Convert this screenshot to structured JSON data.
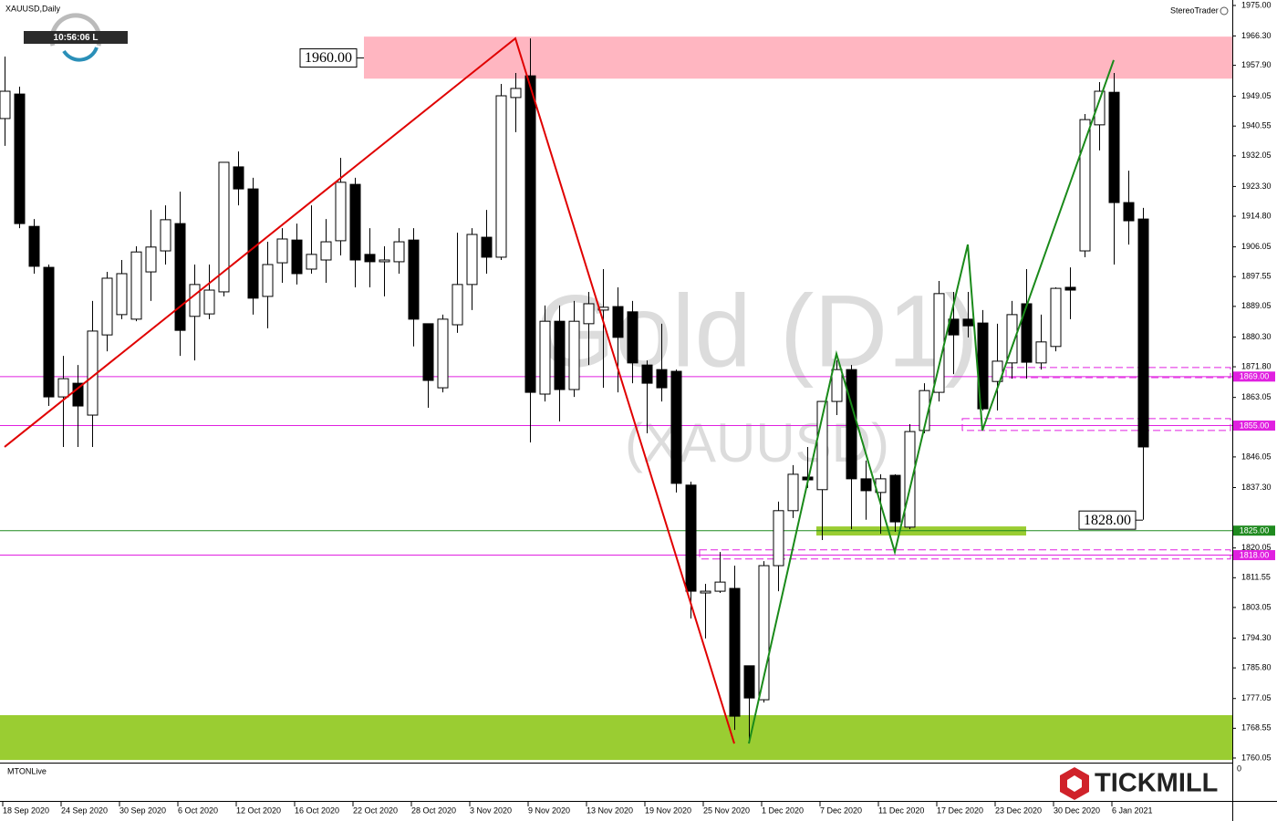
{
  "header": {
    "symbol": "XAUUSD,Daily",
    "clock": "10:56:06 L",
    "platform": "StereoTrader",
    "indicator": "MTONLive",
    "indicator_zero": 0,
    "logo": "TICKMILL"
  },
  "chart_data": {
    "type": "candlestick",
    "watermark": [
      "Gold (D1)",
      "(XAUUSD)"
    ],
    "categories": [
      "18 Sep 2020",
      null,
      null,
      null,
      "24 Sep 2020",
      null,
      null,
      null,
      "30 Sep 2020",
      null,
      null,
      null,
      "6 Oct 2020",
      null,
      null,
      null,
      "12 Oct 2020",
      null,
      null,
      null,
      "16 Oct 2020",
      null,
      null,
      null,
      "22 Oct 2020",
      null,
      null,
      null,
      "28 Oct 2020",
      null,
      null,
      null,
      "3 Nov 2020",
      null,
      null,
      null,
      "9 Nov 2020",
      null,
      null,
      null,
      "13 Nov 2020",
      null,
      null,
      null,
      "19 Nov 2020",
      null,
      null,
      null,
      "25 Nov 2020",
      null,
      null,
      null,
      "1 Dec 2020",
      null,
      null,
      null,
      "7 Dec 2020",
      null,
      null,
      null,
      "11 Dec 2020",
      null,
      null,
      null,
      "17 Dec 2020",
      null,
      null,
      null,
      "23 Dec 2020",
      null,
      null,
      null,
      "30 Dec 2020",
      null,
      null,
      null,
      "6 Jan 2021",
      null,
      null
    ],
    "open": [
      1942.7,
      1949.7,
      1911.9,
      1900.2,
      1863.2,
      1867.1,
      1858.0,
      1880.9,
      1886.7,
      1885.4,
      1898.9,
      1904.9,
      1912.7,
      1886.2,
      1886.9,
      1893.2,
      1928.9,
      1922.6,
      1891.9,
      1901.5,
      1908.0,
      1899.7,
      1902.3,
      1907.8,
      1923.9,
      1903.9,
      1901.8,
      1901.8,
      1908.0,
      1884.1,
      1865.8,
      1883.8,
      1895.3,
      1908.8,
      1903.1,
      1948.7,
      1954.9,
      1864.0,
      1884.8,
      1865.3,
      1884.1,
      1888.0,
      1889.0,
      1887.5,
      1872.3,
      1871.0,
      1870.5,
      1838.0,
      1807.2,
      1807.7,
      1808.5,
      1786.4,
      1776.7,
      1815.0,
      1830.7,
      1840.3,
      1836.7,
      1861.9,
      1871.0,
      1839.8,
      1835.9,
      1840.8,
      1826.0,
      1853.6,
      1864.5,
      1885.4,
      1885.4,
      1884.3,
      1867.6,
      1872.9,
      1889.8,
      1872.9,
      1877.6,
      1894.5,
      1904.9,
      1940.9,
      1950.2,
      1918.7,
      1914.0
    ],
    "high": [
      1960.4,
      1951.8,
      1914.0,
      1901.0,
      1874.9,
      1872.3,
      1890.6,
      1898.9,
      1902.3,
      1906.2,
      1916.6,
      1917.9,
      1921.8,
      1901.0,
      1901.0,
      1930.2,
      1933.3,
      1925.8,
      1907.5,
      1911.4,
      1912.7,
      1917.9,
      1914.0,
      1931.5,
      1925.8,
      1911.4,
      1906.2,
      1911.4,
      1911.4,
      1884.1,
      1886.7,
      1910.1,
      1911.4,
      1916.6,
      1952.6,
      1955.7,
      1965.6,
      1889.3,
      1889.3,
      1890.6,
      1893.2,
      1899.7,
      1894.5,
      1890.6,
      1873.6,
      1884.1,
      1871.0,
      1839.0,
      1809.8,
      1818.9,
      1815.0,
      1786.4,
      1816.3,
      1833.3,
      1843.7,
      1848.9,
      1861.9,
      1873.6,
      1872.3,
      1845.0,
      1841.1,
      1841.1,
      1855.4,
      1867.1,
      1896.3,
      1893.2,
      1893.2,
      1888.0,
      1884.1,
      1890.6,
      1899.7,
      1886.7,
      1894.5,
      1900.2,
      1944.0,
      1953.1,
      1955.7,
      1927.8,
      1917.2
    ],
    "low": [
      1934.9,
      1911.4,
      1898.4,
      1860.6,
      1848.9,
      1848.9,
      1848.9,
      1876.2,
      1885.4,
      1884.8,
      1890.6,
      1901.0,
      1874.9,
      1873.6,
      1885.4,
      1891.9,
      1917.9,
      1886.7,
      1882.8,
      1895.8,
      1895.3,
      1898.4,
      1895.8,
      1903.6,
      1894.5,
      1894.5,
      1891.9,
      1898.4,
      1877.6,
      1860.1,
      1864.5,
      1881.5,
      1888.0,
      1898.4,
      1902.3,
      1938.8,
      1850.2,
      1861.9,
      1856.2,
      1863.2,
      1872.3,
      1865.8,
      1864.5,
      1867.1,
      1852.8,
      1861.9,
      1835.9,
      1799.9,
      1794.2,
      1807.2,
      1768.1,
      1765.0,
      1775.9,
      1807.7,
      1828.6,
      1837.2,
      1822.3,
      1858.0,
      1825.4,
      1828.1,
      1824.1,
      1824.7,
      1825.4,
      1852.8,
      1861.9,
      1869.7,
      1880.2,
      1859.3,
      1859.3,
      1868.4,
      1868.4,
      1871.0,
      1876.2,
      1885.4,
      1903.1,
      1933.6,
      1901.0,
      1906.7,
      1828.1
    ],
    "close": [
      1950.5,
      1912.7,
      1900.5,
      1863.2,
      1868.4,
      1860.6,
      1882.0,
      1897.1,
      1898.4,
      1904.6,
      1906.0,
      1913.8,
      1882.2,
      1895.3,
      1893.7,
      1930.2,
      1922.6,
      1891.4,
      1901.0,
      1908.3,
      1898.4,
      1903.9,
      1907.5,
      1924.5,
      1902.3,
      1901.8,
      1902.3,
      1907.5,
      1885.4,
      1867.9,
      1885.4,
      1895.3,
      1909.6,
      1903.1,
      1949.2,
      1951.3,
      1864.5,
      1884.8,
      1865.3,
      1884.8,
      1889.8,
      1888.8,
      1880.2,
      1872.9,
      1867.1,
      1865.8,
      1838.5,
      1807.7,
      1807.7,
      1810.3,
      1772.0,
      1777.2,
      1815.0,
      1830.7,
      1841.1,
      1839.5,
      1861.9,
      1871.0,
      1839.8,
      1836.4,
      1839.8,
      1827.5,
      1853.3,
      1865.0,
      1892.7,
      1880.9,
      1883.5,
      1859.8,
      1873.4,
      1886.7,
      1873.1,
      1878.9,
      1894.2,
      1893.7,
      1942.4,
      1950.5,
      1918.7,
      1913.5,
      1848.9
    ],
    "up_color": "#ffffff",
    "down_color": "#000000",
    "ylim": [
      1759.0,
      1976.56
    ],
    "yticks": [
      {
        "value": 1975.0,
        "label": "1975.00"
      },
      {
        "value": 1966.3,
        "label": "1966.30"
      },
      {
        "value": 1957.9,
        "label": "1957.90"
      },
      {
        "value": 1949.05,
        "label": "1949.05"
      },
      {
        "value": 1940.55,
        "label": "1940.55"
      },
      {
        "value": 1932.05,
        "label": "1932.05"
      },
      {
        "value": 1923.3,
        "label": "1923.30"
      },
      {
        "value": 1914.8,
        "label": "1914.80"
      },
      {
        "value": 1906.05,
        "label": "1906.05"
      },
      {
        "value": 1897.55,
        "label": "1897.55"
      },
      {
        "value": 1889.05,
        "label": "1889.05"
      },
      {
        "value": 1880.3,
        "label": "1880.30"
      },
      {
        "value": 1871.8,
        "label": "1871.80"
      },
      {
        "value": 1863.05,
        "label": "1863.05"
      },
      {
        "value": 1846.05,
        "label": "1846.05"
      },
      {
        "value": 1837.3,
        "label": "1837.30"
      },
      {
        "value": 1820.05,
        "label": "1820.05"
      },
      {
        "value": 1811.55,
        "label": "1811.55"
      },
      {
        "value": 1803.05,
        "label": "1803.05"
      },
      {
        "value": 1794.3,
        "label": "1794.30"
      },
      {
        "value": 1785.8,
        "label": "1785.80"
      },
      {
        "value": 1777.05,
        "label": "1777.05"
      },
      {
        "value": 1768.55,
        "label": "1768.55"
      },
      {
        "value": 1760.05,
        "label": "1760.05"
      }
    ],
    "zones": [
      {
        "from": 25,
        "low": 1954.1,
        "high": 1966.1,
        "color": "#ffb6c1"
      },
      {
        "low": 1759.5,
        "high": 1772.3,
        "color": "#9acd32"
      },
      {
        "from": 56,
        "to": 70,
        "low": 1823.6,
        "high": 1826.2,
        "color": "#9acd32"
      }
    ],
    "boxes": [
      {
        "from": 69,
        "low": 1868.7,
        "high": 1871.6,
        "color": "#e020e0"
      },
      {
        "from": 66,
        "low": 1853.6,
        "high": 1857.0,
        "color": "#e020e0"
      },
      {
        "from": 48,
        "low": 1816.9,
        "high": 1819.5,
        "color": "#e020e0"
      }
    ],
    "hlines": [
      {
        "value": 1869,
        "label": "1869.00",
        "color": "#e020e0"
      },
      {
        "value": 1855,
        "label": "1855.00",
        "color": "#e020e0"
      },
      {
        "value": 1825,
        "label": "1825.00",
        "color": "#1f8a1f"
      },
      {
        "value": 1818,
        "label": "1818.00",
        "color": "#e020e0"
      }
    ],
    "zigzags": [
      {
        "color": "#e00000",
        "points": [
          [
            0,
            1848.9
          ],
          [
            35,
            1965.6
          ],
          [
            50,
            1764.2
          ]
        ]
      },
      {
        "color": "#1a8a1a",
        "points": [
          [
            51,
            1764.2
          ],
          [
            57,
            1875.5
          ],
          [
            61,
            1818.9
          ],
          [
            66,
            1906.7
          ],
          [
            67,
            1853.6
          ],
          [
            76,
            1959.4
          ]
        ]
      }
    ],
    "price_labels": [
      {
        "value": 1960,
        "label": "1960.00"
      },
      {
        "value": 1828,
        "label": "1828.00"
      }
    ]
  }
}
